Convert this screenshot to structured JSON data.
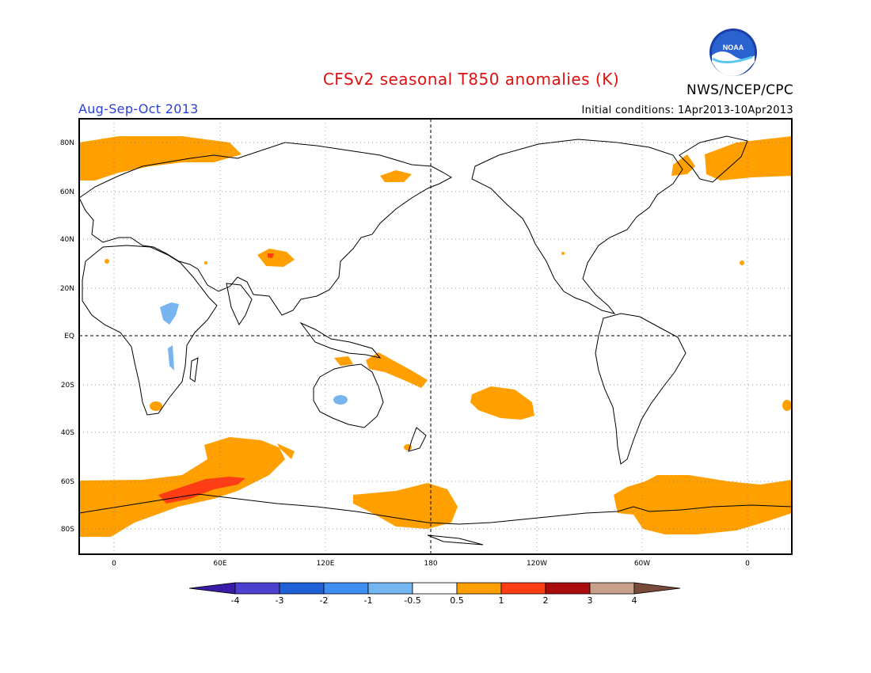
{
  "header": {
    "title": "CFSv2 seasonal T850 anomalies (K)",
    "agency": "NWS/NCEP/CPC",
    "logo_text": "NOAA",
    "period": "Aug-Sep-Oct 2013",
    "initial_conditions": "Initial conditions: 1Apr2013-10Apr2013"
  },
  "map": {
    "lat_labels": [
      "80N",
      "60N",
      "40N",
      "20N",
      "EQ",
      "20S",
      "40S",
      "60S",
      "80S"
    ],
    "lon_labels": [
      "0",
      "60E",
      "120E",
      "180",
      "120W",
      "60W",
      "0"
    ],
    "colors": {
      "land_outline": "#000000",
      "warm_0_5_1": "#ff9f00",
      "warm_1_2": "#ff3c14",
      "cool_-1_-0_5": "#78b4f0"
    }
  },
  "colorbar": {
    "labels": [
      "-4",
      "-3",
      "-2",
      "-1",
      "-0.5",
      "0.5",
      "1",
      "2",
      "3",
      "4"
    ],
    "colors": [
      "#3a1aa8",
      "#4d3fd0",
      "#1f62d8",
      "#3d8ef0",
      "#74b6f2",
      "#ffffff",
      "#ffa000",
      "#ff3c12",
      "#a80c0c",
      "#c8a08c",
      "#7a4a3a"
    ]
  }
}
